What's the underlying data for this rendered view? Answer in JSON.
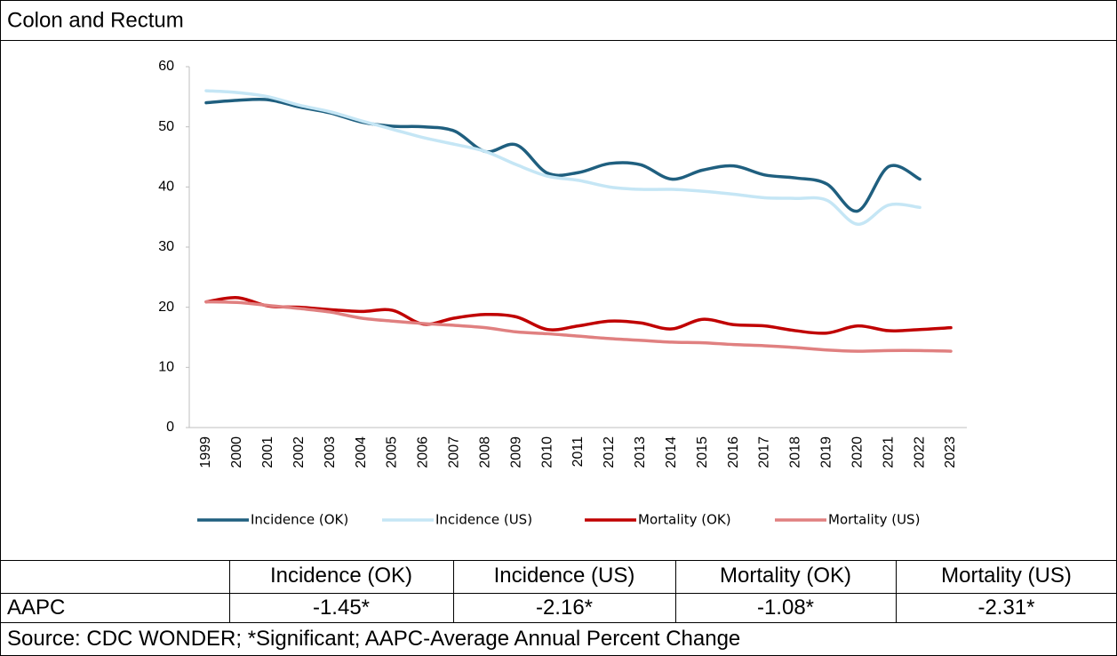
{
  "chart_data": {
    "type": "line",
    "title": "Colon and Rectum",
    "categories": [
      "1999",
      "2000",
      "2001",
      "2002",
      "2003",
      "2004",
      "2005",
      "2006",
      "2007",
      "2008",
      "2009",
      "2010",
      "2011",
      "2012",
      "2013",
      "2014",
      "2015",
      "2016",
      "2017",
      "2018",
      "2019",
      "2020",
      "2021",
      "2022",
      "2023"
    ],
    "series": [
      {
        "name": "Incidence (OK)",
        "color": "#1f5f7f",
        "values": [
          54,
          54.4,
          54.5,
          53.3,
          52.3,
          50.8,
          50.1,
          50,
          49.3,
          45.9,
          47,
          42.3,
          42.4,
          43.9,
          43.7,
          41.3,
          42.8,
          43.5,
          42,
          41.5,
          40.5,
          36,
          43.4,
          41.3,
          null
        ]
      },
      {
        "name": "Incidence (US)",
        "color": "#c5e6f5",
        "values": [
          56,
          55.7,
          55,
          53.6,
          52.5,
          51,
          49.6,
          48.2,
          47.1,
          45.9,
          43.7,
          41.8,
          41.1,
          40,
          39.6,
          39.6,
          39.3,
          38.8,
          38.2,
          38.1,
          37.8,
          33.8,
          37,
          36.6,
          null
        ]
      },
      {
        "name": "Mortality (OK)",
        "color": "#c00000",
        "values": [
          20.9,
          21.6,
          20.2,
          20,
          19.6,
          19.3,
          19.5,
          17.2,
          18.2,
          18.8,
          18.4,
          16.3,
          16.9,
          17.7,
          17.4,
          16.4,
          18,
          17.1,
          16.9,
          16.1,
          15.7,
          16.9,
          16.1,
          16.3,
          16.6
        ]
      },
      {
        "name": "Mortality (US)",
        "color": "#e08080",
        "values": [
          20.9,
          20.8,
          20.3,
          19.8,
          19.2,
          18.2,
          17.7,
          17.3,
          17,
          16.6,
          15.9,
          15.6,
          15.2,
          14.8,
          14.5,
          14.2,
          14.1,
          13.8,
          13.6,
          13.3,
          12.9,
          12.7,
          12.8,
          12.8,
          12.7
        ]
      }
    ],
    "ylim": [
      0,
      60
    ],
    "yticks": [
      0,
      10,
      20,
      30,
      40,
      50,
      60
    ],
    "legend": "bottom"
  },
  "table": {
    "header": [
      "Incidence (OK)",
      "Incidence (US)",
      "Mortality (OK)",
      "Mortality (US)"
    ],
    "row_label": "AAPC",
    "row": [
      "-1.45*",
      "-2.16*",
      "-1.08*",
      "-2.31*"
    ],
    "source": "Source: CDC WONDER; *Significant; AAPC-Average Annual Percent Change"
  }
}
